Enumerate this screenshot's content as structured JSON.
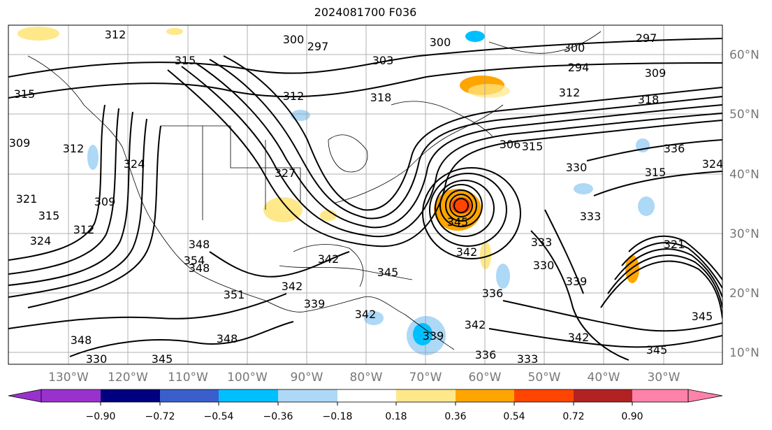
{
  "title": "2024081700 F036",
  "longitude_labels": [
    "130°W",
    "120°W",
    "110°W",
    "100°W",
    "90°W",
    "80°W",
    "70°W",
    "60°W",
    "50°W",
    "40°W",
    "30°W"
  ],
  "latitude_labels": [
    "60°N",
    "50°N",
    "40°N",
    "30°N",
    "20°N",
    "10°N"
  ],
  "colorbar": {
    "ticks": [
      "−0.90",
      "−0.72",
      "−0.54",
      "−0.36",
      "−0.18",
      "0.18",
      "0.36",
      "0.54",
      "0.72",
      "0.90"
    ],
    "colors": [
      "#9932CC",
      "#000080",
      "#3A5FCD",
      "#00BFFF",
      "#ADD8F6",
      "#ffffff",
      "#FFE88A",
      "#FFA500",
      "#FF4500",
      "#B22222",
      "#FF82AB"
    ]
  },
  "contour_labels": [
    "312",
    "300",
    "297",
    "300",
    "300",
    "297",
    "315",
    "294",
    "309",
    "312",
    "303",
    "318",
    "315",
    "318",
    "312",
    "309",
    "312",
    "315",
    "306",
    "336",
    "324",
    "321",
    "330",
    "315",
    "324",
    "327",
    "333",
    "309",
    "312",
    "321",
    "315",
    "324",
    "345",
    "348",
    "342",
    "354",
    "351",
    "348",
    "342",
    "336",
    "339",
    "333",
    "330",
    "339",
    "342",
    "342",
    "345",
    "348",
    "345",
    "336",
    "333",
    "342",
    "348",
    "345",
    "330",
    "339",
    "342",
    "345"
  ]
}
